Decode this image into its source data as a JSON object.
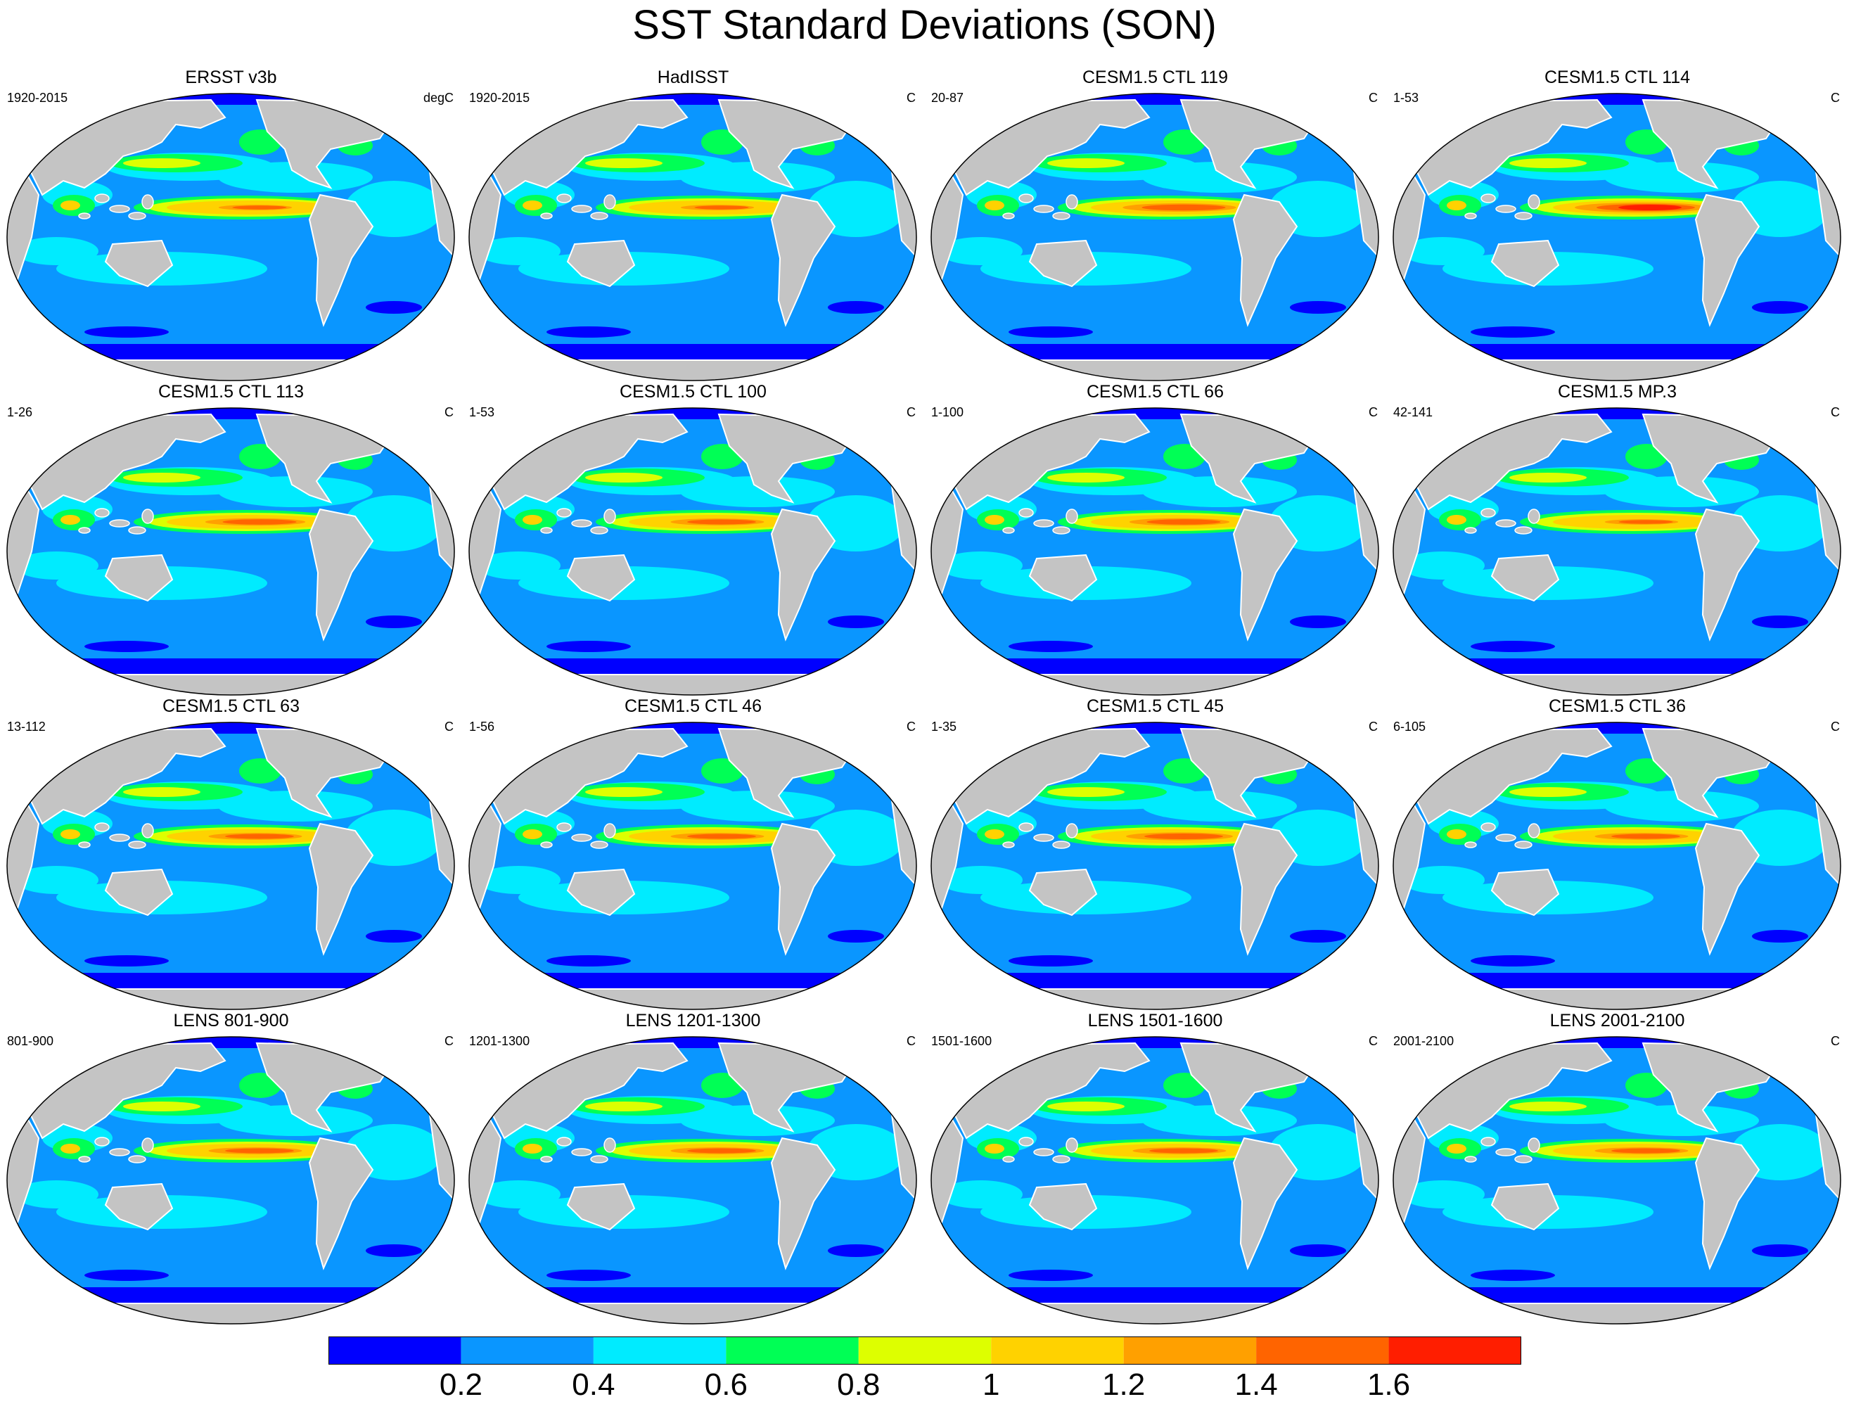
{
  "title": "SST Standard Deviations (SON)",
  "panels": [
    {
      "title": "ERSST v3b",
      "left": "1920-2015",
      "right": "degC",
      "intensity": 0.55
    },
    {
      "title": "HadISST",
      "left": "1920-2015",
      "right": "C",
      "intensity": 0.55
    },
    {
      "title": "CESM1.5 CTL 119",
      "left": "20-87",
      "right": "C",
      "intensity": 0.85
    },
    {
      "title": "CESM1.5 CTL 114",
      "left": "1-53",
      "right": "C",
      "intensity": 1.0
    },
    {
      "title": "CESM1.5 CTL 113",
      "left": "1-26",
      "right": "C",
      "intensity": 0.75
    },
    {
      "title": "CESM1.5 CTL 100",
      "left": "1-53",
      "right": "C",
      "intensity": 0.7
    },
    {
      "title": "CESM1.5 CTL 66",
      "left": "1-100",
      "right": "C",
      "intensity": 0.75
    },
    {
      "title": "CESM1.5 MP.3",
      "left": "42-141",
      "right": "C",
      "intensity": 0.55
    },
    {
      "title": "CESM1.5 CTL 63",
      "left": "13-112",
      "right": "C",
      "intensity": 0.7
    },
    {
      "title": "CESM1.5 CTL 46",
      "left": "1-56",
      "right": "C",
      "intensity": 0.7
    },
    {
      "title": "CESM1.5 CTL 45",
      "left": "1-35",
      "right": "C",
      "intensity": 0.8
    },
    {
      "title": "CESM1.5 CTL 36",
      "left": "6-105",
      "right": "C",
      "intensity": 0.7
    },
    {
      "title": "LENS 801-900",
      "left": "801-900",
      "right": "C",
      "intensity": 0.7
    },
    {
      "title": "LENS 1201-1300",
      "left": "1201-1300",
      "right": "C",
      "intensity": 0.7
    },
    {
      "title": "LENS 1501-1600",
      "left": "1501-1600",
      "right": "C",
      "intensity": 0.7
    },
    {
      "title": "LENS 2001-2100",
      "left": "2001-2100",
      "right": "C",
      "intensity": 0.7
    }
  ],
  "colorbar": {
    "colors": [
      "#0000ff",
      "#0a96ff",
      "#00ebff",
      "#00ff55",
      "#ddff00",
      "#ffd200",
      "#ffa000",
      "#ff6400",
      "#ff1e00"
    ],
    "labels": [
      "0.2",
      "0.4",
      "0.6",
      "0.8",
      "1",
      "1.2",
      "1.4",
      "1.6"
    ]
  },
  "map_colors": {
    "land": "#c4c4c4",
    "ocean_base": "#0a96ff",
    "coast": "#ffffff",
    "outline": "#000000"
  }
}
